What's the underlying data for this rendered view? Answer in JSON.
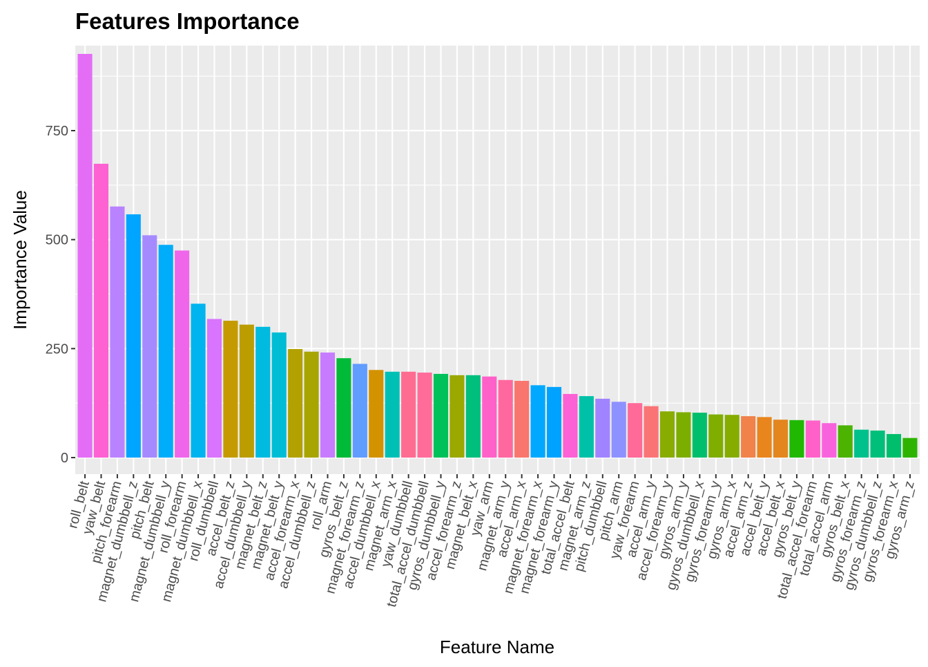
{
  "chart_data": {
    "type": "bar",
    "title": "Features Importance",
    "xlabel": "Feature Name",
    "ylabel": "Importance Value",
    "ylim": [
      -38,
      945
    ],
    "yticks": [
      0,
      250,
      500,
      750
    ],
    "ytick_labels": [
      "0",
      "250",
      "500",
      "750"
    ],
    "grid": true,
    "legend": "none",
    "categories": [
      "roll_belt",
      "yaw_belt",
      "pitch_forearm",
      "magnet_dumbbell_z",
      "pitch_belt",
      "magnet_dumbbell_y",
      "roll_forearm",
      "magnet_dumbbell_x",
      "roll_dumbbell",
      "accel_belt_z",
      "accel_dumbbell_y",
      "magnet_belt_z",
      "magnet_belt_y",
      "accel_forearm_x",
      "accel_dumbbell_z",
      "roll_arm",
      "gyros_belt_z",
      "magnet_forearm_z",
      "accel_dumbbell_x",
      "magnet_arm_x",
      "yaw_dumbbell",
      "total_accel_dumbbell",
      "gyros_dumbbell_y",
      "accel_forearm_z",
      "magnet_belt_x",
      "yaw_arm",
      "magnet_arm_y",
      "accel_arm_x",
      "magnet_forearm_x",
      "magnet_forearm_y",
      "total_accel_belt",
      "magnet_arm_z",
      "pitch_dumbbell",
      "pitch_arm",
      "yaw_forearm",
      "accel_arm_y",
      "accel_forearm_y",
      "gyros_arm_y",
      "gyros_dumbbell_x",
      "gyros_forearm_y",
      "gyros_arm_x",
      "accel_arm_z",
      "accel_belt_y",
      "accel_belt_x",
      "gyros_belt_y",
      "total_accel_forearm",
      "total_accel_arm",
      "gyros_belt_x",
      "gyros_forearm_z",
      "gyros_dumbbell_z",
      "gyros_forearm_x",
      "gyros_arm_z"
    ],
    "values": [
      926,
      674,
      576,
      558,
      510,
      488,
      475,
      353,
      318,
      314,
      305,
      300,
      287,
      249,
      243,
      241,
      228,
      215,
      201,
      197,
      197,
      195,
      192,
      189,
      189,
      186,
      178,
      176,
      166,
      162,
      146,
      141,
      135,
      128,
      125,
      118,
      106,
      104,
      103,
      99,
      98,
      95,
      93,
      87,
      86,
      85,
      79,
      74,
      64,
      62,
      54,
      45
    ],
    "colors": [
      "#E46DF6",
      "#FD61D2",
      "#B983FF",
      "#00A5FF",
      "#A58AFF",
      "#00ADFA",
      "#F066EA",
      "#00B4EF",
      "#D874FD",
      "#C49A00",
      "#BB9D00",
      "#00BAE0",
      "#00BDD5",
      "#B2A100",
      "#A8A400",
      "#C77CFF",
      "#00BA38",
      "#619CFF",
      "#D39200",
      "#00C0B5",
      "#FF6C91",
      "#FF6C9A",
      "#00C15A",
      "#9AA800",
      "#00BF7D",
      "#FF61C9",
      "#FF689F",
      "#F8766D",
      "#00A9FF",
      "#00A2FF",
      "#FC61D5",
      "#00C1A8",
      "#A084FF",
      "#8E92FF",
      "#FF6A98",
      "#FA7476",
      "#89AC00",
      "#7CAE00",
      "#00BE6B",
      "#7FAD00",
      "#86AC00",
      "#F0824A",
      "#E8851D",
      "#E3861E",
      "#20B800",
      "#FF61C8",
      "#F962DD",
      "#4CB300",
      "#00C08B",
      "#00BF7A",
      "#00BE6C",
      "#2EB400"
    ]
  }
}
